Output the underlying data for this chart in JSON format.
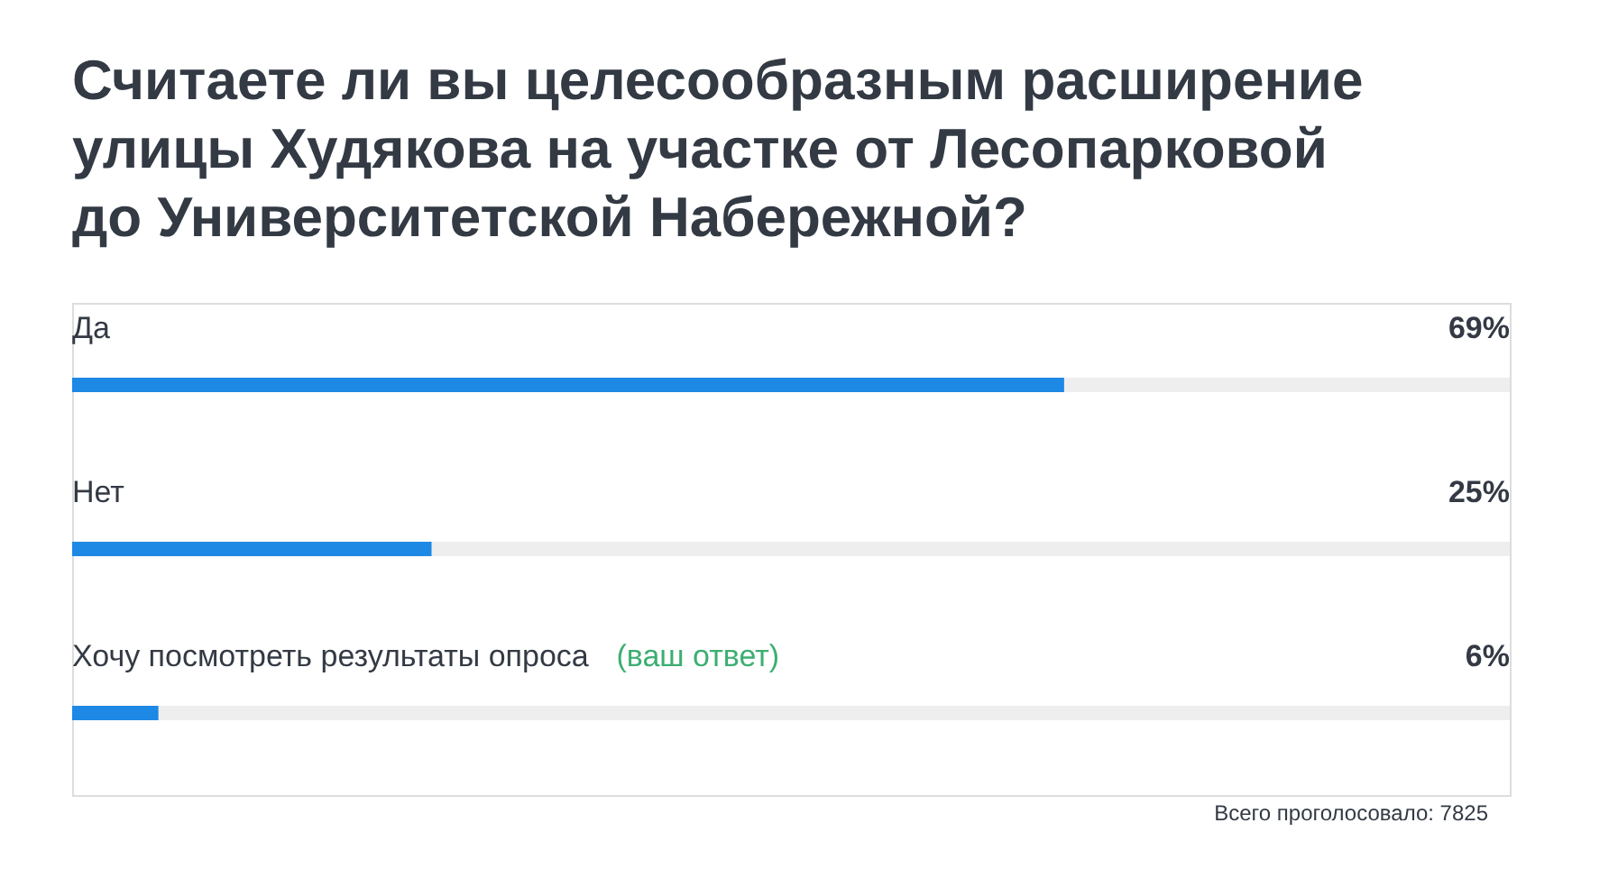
{
  "chart_data": {
    "type": "bar",
    "orientation": "horizontal",
    "title": "Считаете ли вы целесообразным расширение улицы Худякова на участке от Лесопарковой до Университетской Набережной?",
    "categories": [
      "Да",
      "Нет",
      "Хочу посмотреть результаты опроса"
    ],
    "values": [
      69,
      25,
      6
    ],
    "value_labels": [
      "69%",
      "25%",
      "6%"
    ],
    "color": "#1e88e5",
    "xlim": [
      0,
      100
    ],
    "tick_labels": false,
    "annotations": [
      "(ваш ответ)",
      "Всего проголосовало: 7825"
    ]
  }
}
